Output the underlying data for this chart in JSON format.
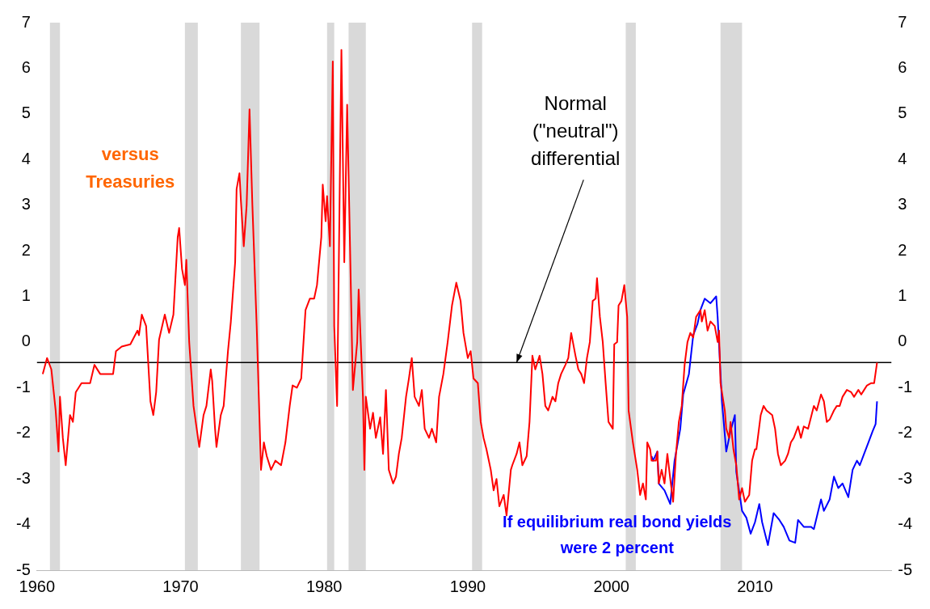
{
  "chart_data": {
    "type": "line",
    "marker": "none",
    "line_style": "solid",
    "grid": false,
    "legend": false,
    "xlim": [
      1960,
      2019.5
    ],
    "xticks": [
      1960,
      1970,
      1980,
      1990,
      2000,
      2010
    ],
    "ylim": [
      -5,
      7
    ],
    "yticks": [
      -5,
      -4,
      -3,
      -2,
      -1,
      0,
      1,
      2,
      3,
      4,
      5,
      6,
      7
    ],
    "y2lim": [
      -5,
      7
    ],
    "y2ticks": [
      -5,
      -4,
      -3,
      -2,
      -1,
      0,
      1,
      2,
      3,
      4,
      5,
      6,
      7
    ],
    "series": [
      {
        "name": "versus Treasuries",
        "color": "#ff0000",
        "x": [
          1960.4,
          1960.7,
          1961.0,
          1961.3,
          1961.5,
          1961.6,
          1961.8,
          1962.0,
          1962.3,
          1962.5,
          1962.7,
          1963.1,
          1963.7,
          1964.0,
          1964.4,
          1964.8,
          1965.3,
          1965.5,
          1965.9,
          1966.5,
          1967.0,
          1967.1,
          1967.3,
          1967.6,
          1967.9,
          1968.1,
          1968.3,
          1968.5,
          1968.9,
          1969.2,
          1969.5,
          1969.8,
          1969.9,
          1970.1,
          1970.3,
          1970.4,
          1970.6,
          1970.9,
          1971.3,
          1971.6,
          1971.8,
          1972.1,
          1972.2,
          1972.4,
          1972.5,
          1972.8,
          1973.0,
          1973.3,
          1973.5,
          1973.8,
          1973.9,
          1974.1,
          1974.2,
          1974.4,
          1974.6,
          1974.8,
          1975.0,
          1975.3,
          1975.6,
          1975.8,
          1976.0,
          1976.3,
          1976.6,
          1977.0,
          1977.3,
          1977.6,
          1977.8,
          1978.1,
          1978.4,
          1978.7,
          1979.0,
          1979.3,
          1979.5,
          1979.8,
          1979.9,
          1980.1,
          1980.2,
          1980.4,
          1980.6,
          1980.7,
          1980.9,
          1981.1,
          1981.2,
          1981.4,
          1981.6,
          1981.8,
          1982.0,
          1982.3,
          1982.4,
          1982.7,
          1982.8,
          1982.9,
          1983.2,
          1983.4,
          1983.6,
          1983.9,
          1984.1,
          1984.3,
          1984.5,
          1984.8,
          1985.0,
          1985.2,
          1985.4,
          1985.7,
          1985.9,
          1986.1,
          1986.3,
          1986.6,
          1986.8,
          1987.0,
          1987.3,
          1987.5,
          1987.8,
          1988.0,
          1988.3,
          1988.6,
          1988.9,
          1989.2,
          1989.5,
          1989.7,
          1990.0,
          1990.2,
          1990.4,
          1990.7,
          1990.9,
          1991.1,
          1991.3,
          1991.6,
          1991.8,
          1992.0,
          1992.2,
          1992.5,
          1992.7,
          1993.0,
          1993.1,
          1993.4,
          1993.6,
          1993.8,
          1994.1,
          1994.3,
          1994.5,
          1994.7,
          1995.0,
          1995.2,
          1995.4,
          1995.6,
          1995.9,
          1996.1,
          1996.3,
          1996.5,
          1996.8,
          1997.0,
          1997.2,
          1997.5,
          1997.7,
          1997.9,
          1998.1,
          1998.3,
          1998.5,
          1998.7,
          1998.9,
          1999.0,
          1999.2,
          1999.4,
          1999.6,
          1999.8,
          2000.1,
          2000.2,
          2000.4,
          2000.5,
          2000.7,
          2000.9,
          2001.1,
          2001.2,
          2001.5,
          2001.8,
          2002.0,
          2002.2,
          2002.4,
          2002.5,
          2002.7,
          2002.8,
          2003.1,
          2003.2,
          2003.3,
          2003.5,
          2003.7,
          2003.9,
          2004.1,
          2004.3,
          2004.5,
          2004.7,
          2004.9,
          2005.1,
          2005.3,
          2005.5,
          2005.7,
          2005.9,
          2006.2,
          2006.3,
          2006.5,
          2006.7,
          2006.9,
          2007.2,
          2007.4,
          2007.5,
          2007.6,
          2007.9,
          2008.0,
          2008.2,
          2008.3,
          2008.5,
          2008.7,
          2008.9,
          2009.1,
          2009.3,
          2009.6,
          2009.8,
          2010.0,
          2010.1,
          2010.4,
          2010.6,
          2010.8,
          2011.2,
          2011.4,
          2011.6,
          2011.8,
          2012.1,
          2012.3,
          2012.5,
          2012.7,
          2013.0,
          2013.2,
          2013.4,
          2013.7,
          2013.9,
          2014.1,
          2014.3,
          2014.6,
          2014.8,
          2015.0,
          2015.2,
          2015.5,
          2015.7,
          2015.9,
          2016.1,
          2016.4,
          2016.7,
          2016.9,
          2017.2,
          2017.4,
          2017.6,
          2017.8,
          2018.1,
          2018.3,
          2018.5
        ],
        "values": [
          -0.7,
          -0.35,
          -0.6,
          -1.5,
          -2.4,
          -1.2,
          -2.1,
          -2.7,
          -1.6,
          -1.75,
          -1.1,
          -0.9,
          -0.9,
          -0.5,
          -0.7,
          -0.7,
          -0.7,
          -0.2,
          -0.1,
          -0.05,
          0.25,
          0.15,
          0.6,
          0.35,
          -1.3,
          -1.6,
          -1.1,
          0.05,
          0.6,
          0.2,
          0.6,
          2.3,
          2.5,
          1.6,
          1.25,
          1.8,
          0,
          -1.4,
          -2.3,
          -1.6,
          -1.4,
          -0.6,
          -0.85,
          -1.9,
          -2.3,
          -1.6,
          -1.4,
          -0.2,
          0.45,
          1.75,
          3.35,
          3.7,
          3.1,
          2.1,
          3.0,
          5.1,
          3.0,
          0.35,
          -2.8,
          -2.2,
          -2.5,
          -2.8,
          -2.6,
          -2.7,
          -2.2,
          -1.4,
          -0.95,
          -1.0,
          -0.8,
          0.7,
          0.95,
          0.95,
          1.25,
          2.3,
          3.45,
          2.65,
          3.2,
          2.1,
          6.15,
          0.35,
          -1.4,
          3.85,
          6.4,
          1.75,
          5.2,
          2.1,
          -1.05,
          0.0,
          1.15,
          -1.2,
          -2.8,
          -1.2,
          -1.9,
          -1.55,
          -2.1,
          -1.65,
          -2.45,
          -1.05,
          -2.8,
          -3.1,
          -2.95,
          -2.45,
          -2.1,
          -1.2,
          -0.8,
          -0.35,
          -1.2,
          -1.4,
          -1.05,
          -1.9,
          -2.1,
          -1.9,
          -2.2,
          -1.2,
          -0.7,
          0.0,
          0.8,
          1.3,
          0.9,
          0.2,
          -0.35,
          -0.2,
          -0.8,
          -0.9,
          -1.75,
          -2.1,
          -2.35,
          -2.8,
          -3.25,
          -3.0,
          -3.6,
          -3.35,
          -3.8,
          -2.8,
          -2.7,
          -2.45,
          -2.2,
          -2.7,
          -2.5,
          -1.75,
          -0.3,
          -0.6,
          -0.3,
          -0.7,
          -1.4,
          -1.5,
          -1.2,
          -1.3,
          -0.9,
          -0.7,
          -0.5,
          -0.35,
          0.2,
          -0.3,
          -0.6,
          -0.7,
          -0.9,
          -0.35,
          0.0,
          0.9,
          0.95,
          1.4,
          0.55,
          0.0,
          -0.9,
          -1.75,
          -1.9,
          -0.05,
          0.0,
          0.8,
          0.9,
          1.25,
          0.55,
          -1.5,
          -2.2,
          -2.8,
          -3.35,
          -3.1,
          -3.45,
          -2.2,
          -2.35,
          -2.6,
          -2.6,
          -2.4,
          -3.1,
          -2.8,
          -3.1,
          -2.45,
          -3.0,
          -3.5,
          -2.45,
          -1.75,
          -1.4,
          -0.5,
          0.0,
          0.2,
          0.1,
          0.55,
          0.7,
          0.45,
          0.7,
          0.25,
          0.45,
          0.35,
          0.0,
          0.25,
          -0.9,
          -1.5,
          -1.9,
          -2.1,
          -1.75,
          -2.35,
          -2.7,
          -3.45,
          -3.2,
          -3.5,
          -3.35,
          -2.6,
          -2.35,
          -2.35,
          -1.6,
          -1.4,
          -1.5,
          -1.6,
          -1.9,
          -2.45,
          -2.7,
          -2.6,
          -2.45,
          -2.2,
          -2.1,
          -1.85,
          -2.1,
          -1.85,
          -1.9,
          -1.65,
          -1.4,
          -1.5,
          -1.15,
          -1.3,
          -1.75,
          -1.7,
          -1.5,
          -1.4,
          -1.4,
          -1.2,
          -1.05,
          -1.1,
          -1.2,
          -1.05,
          -1.15,
          -1.05,
          -0.95,
          -0.9,
          -0.9,
          -0.45
        ]
      },
      {
        "name": "If equilibrium real bond yields were 2 percent",
        "color": "#0000ff",
        "x": [
          2002.8,
          2002.9,
          2003.2,
          2003.3,
          2003.7,
          2004.1,
          2004.4,
          2004.8,
          2005.0,
          2005.4,
          2005.7,
          2006.0,
          2006.2,
          2006.5,
          2006.9,
          2007.3,
          2007.4,
          2007.7,
          2008.0,
          2008.3,
          2008.6,
          2008.7,
          2009.1,
          2009.4,
          2009.7,
          2010.0,
          2010.3,
          2010.5,
          2010.9,
          2011.3,
          2011.7,
          2012.0,
          2012.4,
          2012.8,
          2013.0,
          2013.4,
          2013.9,
          2014.1,
          2014.6,
          2014.8,
          2015.2,
          2015.5,
          2015.8,
          2016.1,
          2016.5,
          2016.8,
          2017.1,
          2017.3,
          2017.6,
          2017.9,
          2018.2,
          2018.4,
          2018.5
        ],
        "values": [
          -2.5,
          -2.6,
          -2.4,
          -3.1,
          -3.25,
          -3.55,
          -2.6,
          -1.9,
          -1.15,
          -0.7,
          0.15,
          0.4,
          0.7,
          0.95,
          0.85,
          1.0,
          0.55,
          -1.3,
          -2.4,
          -1.95,
          -1.6,
          -2.85,
          -3.7,
          -3.85,
          -4.2,
          -3.95,
          -3.55,
          -3.95,
          -4.45,
          -3.75,
          -3.9,
          -4.05,
          -4.35,
          -4.4,
          -3.9,
          -4.05,
          -4.05,
          -4.1,
          -3.45,
          -3.7,
          -3.45,
          -2.95,
          -3.2,
          -3.1,
          -3.4,
          -2.8,
          -2.6,
          -2.7,
          -2.45,
          -2.2,
          -1.95,
          -1.8,
          -1.3
        ]
      }
    ],
    "bands": [
      {
        "axis": "x",
        "from": 1960.9,
        "to": 1961.6,
        "color": "#d9d9d9"
      },
      {
        "axis": "x",
        "from": 1970.3,
        "to": 1971.2,
        "color": "#d9d9d9"
      },
      {
        "axis": "x",
        "from": 1974.2,
        "to": 1975.5,
        "color": "#d9d9d9"
      },
      {
        "axis": "x",
        "from": 1980.2,
        "to": 1980.7,
        "color": "#d9d9d9"
      },
      {
        "axis": "x",
        "from": 1981.7,
        "to": 1982.9,
        "color": "#d9d9d9"
      },
      {
        "axis": "x",
        "from": 1990.3,
        "to": 1991.0,
        "color": "#d9d9d9"
      },
      {
        "axis": "x",
        "from": 2001.0,
        "to": 2001.7,
        "color": "#d9d9d9"
      },
      {
        "axis": "x",
        "from": 2007.6,
        "to": 2009.1,
        "color": "#d9d9d9"
      }
    ],
    "ref_lines": [
      {
        "axis": "y",
        "value": -0.45,
        "color": "#000000"
      }
    ],
    "annotations": [
      {
        "text": "Normal (\"neutral\") differential",
        "x": 1993.4,
        "y": -0.45
      }
    ]
  }
}
